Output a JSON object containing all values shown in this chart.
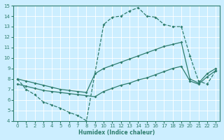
{
  "xlabel": "Humidex (Indice chaleur)",
  "bg_color": "#cceeff",
  "grid_color": "#b0d8d8",
  "line_color": "#2e7d6e",
  "xlim": [
    -0.5,
    23.5
  ],
  "ylim": [
    4,
    15
  ],
  "xticks": [
    0,
    1,
    2,
    3,
    4,
    5,
    6,
    7,
    8,
    9,
    10,
    11,
    12,
    13,
    14,
    15,
    16,
    17,
    18,
    19,
    20,
    21,
    22,
    23
  ],
  "yticks": [
    4,
    5,
    6,
    7,
    8,
    9,
    10,
    11,
    12,
    13,
    14,
    15
  ],
  "line1": {
    "x": [
      0,
      1,
      2,
      3,
      4,
      5,
      6,
      7,
      8,
      10,
      11,
      12,
      13,
      14,
      15,
      16,
      17,
      18,
      19,
      20,
      21,
      22,
      23
    ],
    "y": [
      8,
      7,
      6.5,
      5.8,
      5.5,
      5.2,
      4.8,
      4.5,
      4.0,
      13.2,
      13.9,
      14.0,
      14.5,
      14.8,
      14.0,
      13.9,
      13.2,
      13.0,
      13.0,
      10.2,
      7.8,
      7.5,
      8.8
    ]
  },
  "line2": {
    "x": [
      0,
      1,
      2,
      3,
      4,
      5,
      6,
      7,
      8,
      9,
      10,
      11,
      12,
      13,
      14,
      15,
      16,
      17,
      18,
      19,
      20,
      21,
      22,
      23
    ],
    "y": [
      8.0,
      7.8,
      7.6,
      7.4,
      7.2,
      7.0,
      6.9,
      6.8,
      6.7,
      8.5,
      9.0,
      9.3,
      9.6,
      9.9,
      10.2,
      10.5,
      10.8,
      11.1,
      11.3,
      11.5,
      8.0,
      7.6,
      8.5,
      9.0
    ]
  },
  "line3": {
    "x": [
      0,
      1,
      2,
      3,
      4,
      5,
      6,
      7,
      8,
      9,
      10,
      11,
      12,
      13,
      14,
      15,
      16,
      17,
      18,
      19,
      20,
      21,
      22,
      23
    ],
    "y": [
      7.5,
      7.3,
      7.1,
      6.9,
      6.8,
      6.7,
      6.6,
      6.5,
      6.4,
      6.3,
      6.8,
      7.1,
      7.4,
      7.6,
      7.9,
      8.1,
      8.4,
      8.7,
      9.0,
      9.2,
      7.8,
      7.5,
      8.2,
      8.8
    ]
  }
}
